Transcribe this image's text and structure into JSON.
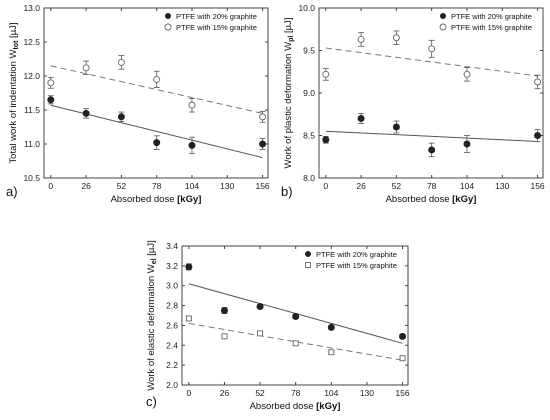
{
  "chart_data": [
    {
      "type": "scatter",
      "panel_label": "a)",
      "xlabel": "Absorbed dose",
      "xlabel_unit": "[kGy]",
      "ylabel_main": "Total work of indentation W",
      "ylabel_sub": "tot",
      "ylabel_unit": "[µJ]",
      "xlim": [
        -5,
        160
      ],
      "ylim": [
        10.5,
        13.0
      ],
      "xticks": [
        0,
        26,
        52,
        78,
        104,
        130,
        156
      ],
      "yticks": [
        10.5,
        11.0,
        11.5,
        12.0,
        12.5,
        13.0
      ],
      "ytick_labels": [
        "10.5",
        "11.0",
        "11.5",
        "12.0",
        "12.5",
        "13.0"
      ],
      "legend_position": "top-right",
      "series": [
        {
          "name": "PTFE with 20% graphite",
          "marker": "filled-circle",
          "line": "solid",
          "x": [
            0,
            26,
            52,
            78,
            104,
            156
          ],
          "y": [
            11.65,
            11.45,
            11.4,
            11.02,
            10.98,
            11.0
          ],
          "err": [
            0.06,
            0.07,
            0.07,
            0.1,
            0.12,
            0.08
          ],
          "fit": [
            11.57,
            10.8
          ]
        },
        {
          "name": "PTFE with 15% graphite",
          "marker": "open-circle",
          "line": "dashed",
          "x": [
            0,
            26,
            52,
            78,
            104,
            156
          ],
          "y": [
            11.9,
            12.12,
            12.2,
            11.95,
            11.57,
            11.4
          ],
          "err": [
            0.08,
            0.1,
            0.1,
            0.12,
            0.1,
            0.08
          ],
          "fit": [
            12.15,
            11.45
          ]
        }
      ]
    },
    {
      "type": "scatter",
      "panel_label": "b)",
      "xlabel": "Absorbed dose",
      "xlabel_unit": "[kGy]",
      "ylabel_main": "Work of plastic deformation W",
      "ylabel_sub": "pl",
      "ylabel_unit": "[µJ]",
      "xlim": [
        -5,
        160
      ],
      "ylim": [
        8.0,
        10.0
      ],
      "xticks": [
        0,
        26,
        52,
        78,
        104,
        130,
        156
      ],
      "yticks": [
        8.0,
        8.5,
        9.0,
        9.5,
        10.0
      ],
      "ytick_labels": [
        "8.0",
        "8.5",
        "9.0",
        "9.5",
        "10.0"
      ],
      "legend_position": "top-right",
      "series": [
        {
          "name": "PTFE with 20% graphite",
          "marker": "filled-circle",
          "line": "solid",
          "x": [
            0,
            26,
            52,
            78,
            104,
            156
          ],
          "y": [
            8.45,
            8.7,
            8.6,
            8.33,
            8.4,
            8.5
          ],
          "err": [
            0.04,
            0.06,
            0.07,
            0.08,
            0.1,
            0.07
          ],
          "fit": [
            8.55,
            8.43
          ]
        },
        {
          "name": "PTFE with 15% graphite",
          "marker": "open-circle",
          "line": "dashed",
          "x": [
            0,
            26,
            52,
            78,
            104,
            156
          ],
          "y": [
            9.22,
            9.63,
            9.65,
            9.52,
            9.22,
            9.13
          ],
          "err": [
            0.07,
            0.08,
            0.08,
            0.1,
            0.08,
            0.08
          ],
          "fit": [
            9.53,
            9.2
          ]
        }
      ]
    },
    {
      "type": "scatter",
      "panel_label": "c)",
      "xlabel": "Absorbed dose",
      "xlabel_unit": "[kGy]",
      "ylabel_main": "Work of elastic deformation W",
      "ylabel_sub": "el",
      "ylabel_unit": "[µJ]",
      "xlim": [
        -5,
        160
      ],
      "ylim": [
        2.0,
        3.4
      ],
      "xticks": [
        0,
        26,
        52,
        78,
        104,
        130,
        156
      ],
      "yticks": [
        2.0,
        2.2,
        2.4,
        2.6,
        2.8,
        3.0,
        3.2,
        3.4
      ],
      "ytick_labels": [
        "2.0",
        "2.2",
        "2.4",
        "2.6",
        "2.8",
        "3.0",
        "3.2",
        "3.4"
      ],
      "legend_position": "top-right",
      "series": [
        {
          "name": "PTFE with 20% graphite",
          "marker": "filled-circle",
          "line": "solid",
          "x": [
            0,
            26,
            52,
            78,
            104,
            156
          ],
          "y": [
            3.19,
            2.75,
            2.79,
            2.69,
            2.58,
            2.49
          ],
          "err": [
            0.03,
            0.03,
            0.02,
            0.02,
            0.02,
            0.02
          ],
          "fit": [
            3.02,
            2.42
          ]
        },
        {
          "name": "PTFE with 15% graphite",
          "marker": "open-square",
          "line": "dashed",
          "x": [
            0,
            26,
            52,
            78,
            104,
            156
          ],
          "y": [
            2.67,
            2.49,
            2.52,
            2.42,
            2.33,
            2.27
          ],
          "err": [
            0.02,
            0.02,
            0.02,
            0.02,
            0.02,
            0.02
          ],
          "fit": [
            2.62,
            2.25
          ]
        }
      ]
    }
  ]
}
